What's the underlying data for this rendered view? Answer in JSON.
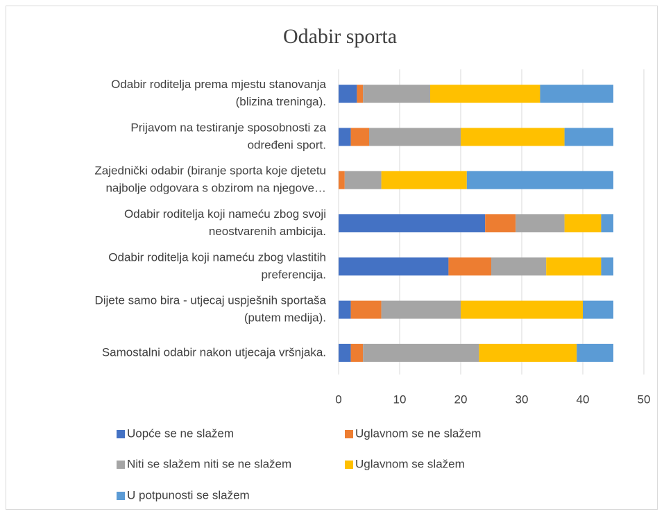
{
  "chart_data": {
    "type": "stacked_bar_horizontal",
    "title": "Odabir sporta",
    "categories": [
      [
        "Odabir roditelja prema mjestu stanovanja",
        "(blizina treninga)."
      ],
      [
        "Prijavom na testiranje sposobnosti za",
        "određeni sport."
      ],
      [
        "Zajednički odabir (biranje sporta koje djetetu",
        "najbolje odgovara s obzirom na njegove…"
      ],
      [
        "Odabir roditelja koji nameću zbog svoji",
        "neostvarenih ambicija."
      ],
      [
        "Odabir roditelja koji nameću zbog vlastitih",
        "preferencija."
      ],
      [
        "Dijete samo bira - utjecaj uspješnih sportaša",
        "(putem medija)."
      ],
      [
        "Samostalni odabir nakon utjecaja vršnjaka."
      ]
    ],
    "series": [
      {
        "name": "Uopće se ne slažem",
        "color": "#4472c4",
        "values": [
          3,
          2,
          0,
          24,
          18,
          2,
          2
        ]
      },
      {
        "name": "Uglavnom se ne slažem",
        "color": "#ed7d31",
        "values": [
          1,
          3,
          1,
          5,
          7,
          5,
          2
        ]
      },
      {
        "name": "Niti se slažem niti se ne slažem",
        "color": "#a5a5a5",
        "values": [
          11,
          15,
          6,
          8,
          9,
          13,
          19
        ]
      },
      {
        "name": "Uglavnom se slažem",
        "color": "#ffc000",
        "values": [
          18,
          17,
          14,
          6,
          9,
          20,
          16
        ]
      },
      {
        "name": "U potpunosti se slažem",
        "color": "#5b9bd5",
        "values": [
          12,
          8,
          24,
          2,
          2,
          5,
          6
        ]
      }
    ],
    "xlim": [
      0,
      50
    ],
    "xticks": [
      0,
      10,
      20,
      30,
      40,
      50
    ],
    "grid": true,
    "legend": "bottom"
  }
}
